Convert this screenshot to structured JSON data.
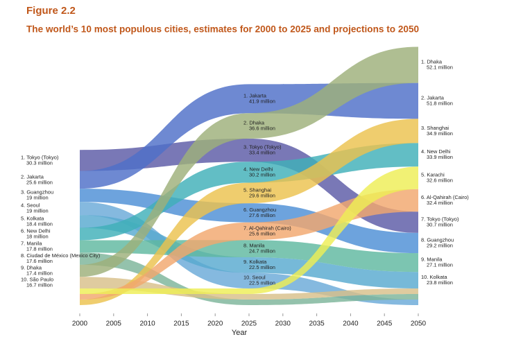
{
  "chart_data": {
    "type": "ribbon",
    "title": "Figure 2.2",
    "subtitle": "The world’s 10 most populous cities, estimates for 2000 to 2025 and projections to 2050",
    "xlabel": "Year",
    "x": [
      2000,
      2025,
      2050
    ],
    "xlim": [
      2000,
      2050
    ],
    "xticks": [
      2000,
      2005,
      2010,
      2015,
      2020,
      2025,
      2030,
      2035,
      2040,
      2045,
      2050
    ],
    "series": [
      {
        "color": "#5b5aa6",
        "labels": [
          "1. Tokyo (Tokyo)",
          "3. Tokyo (Tokyo)",
          "7. Tokyo (Tokyo)"
        ],
        "values": [
          30.3,
          33.4,
          30.7
        ],
        "value_labels": [
          "30.3 million",
          "33.4 million",
          "30.7 million"
        ]
      },
      {
        "color": "#4e6fc8",
        "labels": [
          "2. Jakarta",
          "1. Jakarta",
          "2. Jakarta"
        ],
        "values": [
          25.6,
          41.9,
          51.8
        ],
        "value_labels": [
          "25.6 million",
          "41.9 million",
          "51.8 million"
        ]
      },
      {
        "color": "#4d8fd6",
        "labels": [
          "3. Guangzhou",
          "6. Guangzhou",
          "8. Guangzhou"
        ],
        "values": [
          19,
          27.6,
          29.2
        ],
        "value_labels": [
          "19 million",
          "27.6 million",
          "29.2 million"
        ]
      },
      {
        "color": "#6aaad8",
        "labels": [
          "4. Seoul",
          "10. Seoul",
          null
        ],
        "values": [
          19,
          22.5,
          null
        ],
        "value_labels": [
          "19 million",
          "22.5 million",
          null
        ]
      },
      {
        "color": "#58a9cf",
        "labels": [
          "5. Kolkata",
          "9. Kolkata",
          "10. Kolkata"
        ],
        "values": [
          18.4,
          22.5,
          23.8
        ],
        "value_labels": [
          "18.4 million",
          "22.5 million",
          "23.8 million"
        ]
      },
      {
        "color": "#3fb0b8",
        "labels": [
          "6. New Delhi",
          "4. New Delhi",
          "4. New Delhi"
        ],
        "values": [
          18,
          30.2,
          33.9
        ],
        "value_labels": [
          "18 million",
          "30.2 million",
          "33.9 million"
        ]
      },
      {
        "color": "#5fb8a0",
        "labels": [
          "7. Manila",
          "8. Manila",
          "9. Manila"
        ],
        "values": [
          17.8,
          24.7,
          27.1
        ],
        "value_labels": [
          "17.8 million",
          "24.7 million",
          "27.1 million"
        ]
      },
      {
        "color": "#7cb49a",
        "labels": [
          "8. Ciudad de México (Mexico City)",
          null,
          null
        ],
        "values": [
          17.6,
          null,
          null
        ],
        "value_labels": [
          "17.6 million",
          null,
          null
        ]
      },
      {
        "color": "#9db07a",
        "labels": [
          "9. Dhaka",
          "2. Dhaka",
          "1. Dhaka"
        ],
        "values": [
          17.4,
          36.6,
          52.1
        ],
        "value_labels": [
          "17.4 million",
          "36.6 million",
          "52.1 million"
        ]
      },
      {
        "color": "#d8c08a",
        "labels": [
          "10. São Paulo",
          null,
          null
        ],
        "values": [
          16.7,
          null,
          null
        ],
        "value_labels": [
          "16.7 million",
          null,
          null
        ]
      },
      {
        "color": "#ecc24e",
        "labels": [
          null,
          "5. Shanghai",
          "3. Shanghai"
        ],
        "values": [
          null,
          29.6,
          34.9
        ],
        "value_labels": [
          null,
          "29.6 million",
          "34.9 million"
        ]
      },
      {
        "color": "#f2a76e",
        "labels": [
          null,
          "7. Al-Qahirah (Cairo)",
          "6. Al-Qahirah (Cairo)"
        ],
        "values": [
          null,
          25.6,
          32.4
        ],
        "value_labels": [
          null,
          "25.6 million",
          "32.4 million"
        ]
      },
      {
        "color": "#eeee55",
        "labels": [
          null,
          null,
          "5. Karachi"
        ],
        "values": [
          null,
          null,
          32.6
        ],
        "value_labels": [
          null,
          null,
          "32.6 million"
        ]
      }
    ]
  }
}
